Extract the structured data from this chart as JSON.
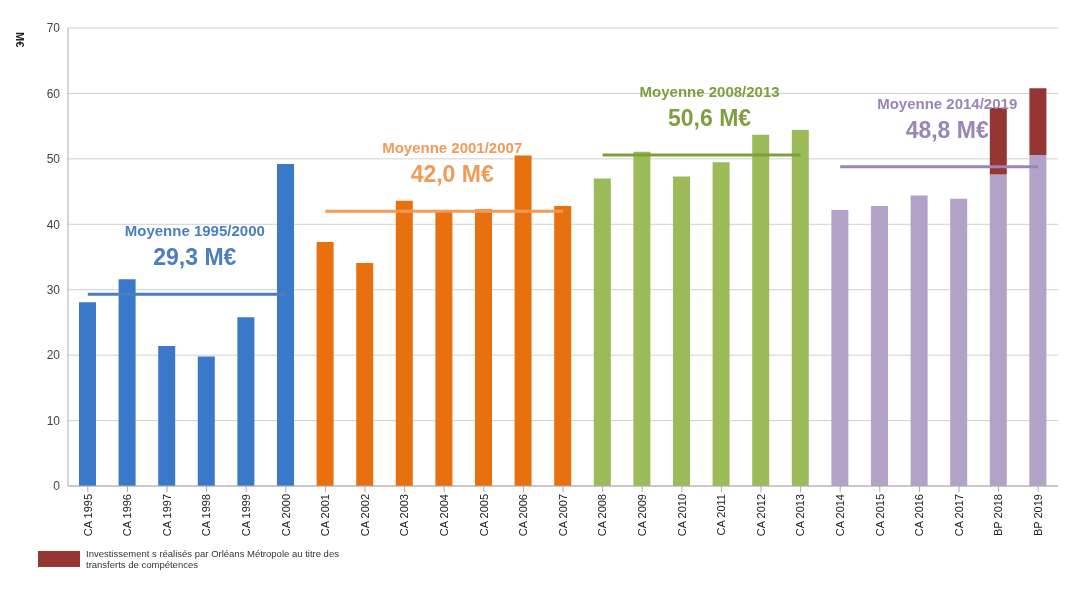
{
  "chart_data": {
    "type": "bar",
    "stacked": true,
    "ylabel": "M€",
    "ylim": [
      0,
      70
    ],
    "yticks": [
      0,
      10,
      20,
      30,
      40,
      50,
      60,
      70
    ],
    "grid": "y",
    "legend": "bottom left",
    "categories": [
      "CA 1995",
      "CA 1996",
      "CA 1997",
      "CA 1998",
      "CA 1999",
      "CA 2000",
      "CA 2001",
      "CA 2002",
      "CA 2003",
      "CA 2004",
      "CA 2005",
      "CA 2006",
      "CA 2007",
      "CA 2008",
      "CA 2009",
      "CA 2010",
      "CA 2011",
      "CA 2012",
      "CA 2013",
      "CA 2014",
      "CA 2015",
      "CA 2016",
      "CA 2017",
      "BP 2018",
      "BP 2019"
    ],
    "series": [
      {
        "values": [
          28.1,
          31.6,
          21.4,
          19.8,
          25.8,
          49.2,
          37.3,
          34.1,
          43.6,
          42.0,
          42.3,
          50.5,
          42.8,
          47.0,
          51.1,
          47.3,
          49.5,
          53.7,
          54.4,
          42.2,
          42.8,
          44.4,
          43.9,
          47.6,
          50.6
        ],
        "colors": [
          "#3a78c9",
          "#3a78c9",
          "#3a78c9",
          "#3a78c9",
          "#3a78c9",
          "#3a78c9",
          "#e8700f",
          "#e8700f",
          "#e8700f",
          "#e8700f",
          "#e8700f",
          "#e8700f",
          "#e8700f",
          "#9bbb59",
          "#9bbb59",
          "#9bbb59",
          "#9bbb59",
          "#9bbb59",
          "#9bbb59",
          "#b3a2c7",
          "#b3a2c7",
          "#b3a2c7",
          "#b3a2c7",
          "#b3a2c7",
          "#b3a2c7"
        ]
      },
      {
        "name": "Investissement s réalisés par Orléans Métropole  au titre des transferts de compétences",
        "color": "#963634",
        "values": [
          null,
          null,
          null,
          null,
          null,
          null,
          null,
          null,
          null,
          null,
          null,
          null,
          null,
          null,
          null,
          null,
          null,
          null,
          null,
          null,
          null,
          null,
          null,
          10.2,
          10.2
        ]
      },
      {
        "type": "line",
        "color": "#4a7ebf",
        "x": [
          "CA 1995",
          "CA 2000"
        ],
        "values": [
          29.3,
          29.3
        ]
      },
      {
        "type": "line",
        "color": "#f29a58",
        "x": [
          "CA 2001",
          "CA 2007"
        ],
        "values": [
          42.0,
          42.0
        ]
      },
      {
        "type": "line",
        "color": "#7f9f3f",
        "x": [
          "CA 2008",
          "CA 2013"
        ],
        "values": [
          50.6,
          50.6
        ]
      },
      {
        "type": "line",
        "color": "#9a86b6",
        "x": [
          "CA 2014",
          "BP 2019"
        ],
        "values": [
          48.8,
          48.8
        ]
      }
    ],
    "annotations": [
      "Moyenne 1995/2000",
      "29,3 M€",
      "Moyenne 2001/2007",
      "42,0 M€",
      "Moyenne 2008/2013",
      "50,6 M€",
      "Moyenne 2014/2019",
      "48,8 M€"
    ]
  }
}
